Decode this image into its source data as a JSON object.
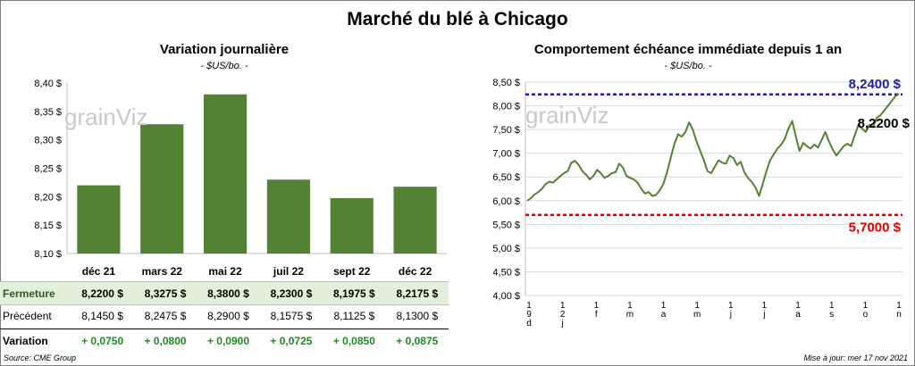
{
  "title": "Marché du blé à Chicago",
  "left": {
    "subtitle": "Variation  journalière",
    "unit": "- $US/bo. -",
    "watermark": "grainViz"
  },
  "right": {
    "subtitle": "Comportement  échéance immédiate depuis 1 an",
    "unit": "- $US/bo. -",
    "watermark": "grainViz"
  },
  "table": {
    "labels": {
      "fermeture": "Fermeture",
      "precedent": "Précédent",
      "variation": "Variation"
    },
    "fermeture": [
      "8,2200  $",
      "8,3275  $",
      "8,3800  $",
      "8,2300  $",
      "8,1975  $",
      "8,2175  $"
    ],
    "precedent": [
      "8,1450  $",
      "8,2475  $",
      "8,2900  $",
      "8,1575  $",
      "8,1125  $",
      "8,1300  $"
    ],
    "variation": [
      "+ 0,0750",
      "+ 0,0800",
      "+ 0,0900",
      "+ 0,0725",
      "+ 0,0850",
      "+ 0,0875"
    ]
  },
  "footer": {
    "source": "Source: CME Group",
    "updated": "Mise à jour: mer 17 nov 2021"
  },
  "chart_data": [
    {
      "type": "bar",
      "categories": [
        "déc 21",
        "mars 22",
        "mai 22",
        "juil 22",
        "sept 22",
        "déc 22"
      ],
      "values": [
        8.22,
        8.3275,
        8.38,
        8.23,
        8.1975,
        8.2175
      ],
      "ylim": [
        8.1,
        8.4
      ],
      "yticks": [
        "8,10 $",
        "8,15 $",
        "8,20 $",
        "8,25 $",
        "8,30 $",
        "8,35 $",
        "8,40 $"
      ],
      "color": "#548235",
      "grid": false
    },
    {
      "type": "line",
      "ylim": [
        4.0,
        8.5
      ],
      "yticks": [
        "4,00 $",
        "4,50 $",
        "5,00 $",
        "5,50 $",
        "6,00 $",
        "6,50 $",
        "7,00 $",
        "7,50 $",
        "8,00 $",
        "8,50 $"
      ],
      "xticks": [
        "1\n9\nd",
        "1\n2\nj",
        "1\nf",
        "1\nm",
        "1\na",
        "1\nm",
        "1\nj",
        "1\nj",
        "1\na",
        "1\ns",
        "1\no",
        "1\nn"
      ],
      "values": [
        6.0,
        6.05,
        6.13,
        6.18,
        6.25,
        6.35,
        6.4,
        6.38,
        6.45,
        6.52,
        6.58,
        6.62,
        6.8,
        6.84,
        6.75,
        6.62,
        6.55,
        6.45,
        6.52,
        6.65,
        6.58,
        6.48,
        6.52,
        6.58,
        6.6,
        6.78,
        6.7,
        6.52,
        6.48,
        6.45,
        6.38,
        6.25,
        6.15,
        6.18,
        6.1,
        6.12,
        6.22,
        6.35,
        6.6,
        6.9,
        7.2,
        7.4,
        7.35,
        7.45,
        7.65,
        7.5,
        7.25,
        7.05,
        6.85,
        6.62,
        6.58,
        6.72,
        6.85,
        6.8,
        6.78,
        6.95,
        6.9,
        6.75,
        6.82,
        6.6,
        6.48,
        6.4,
        6.28,
        6.1,
        6.35,
        6.62,
        6.85,
        6.98,
        7.1,
        7.18,
        7.3,
        7.52,
        7.68,
        7.35,
        7.05,
        7.22,
        7.15,
        7.1,
        7.18,
        7.12,
        7.28,
        7.45,
        7.25,
        7.08,
        6.95,
        7.05,
        7.15,
        7.2,
        7.15,
        7.38,
        7.6,
        7.52,
        7.45,
        7.6,
        7.55,
        7.75,
        7.8,
        7.9,
        8.0,
        8.1,
        8.2,
        8.25
      ],
      "line_color": "#548235",
      "high": {
        "value": 8.24,
        "label": "8,2400 $",
        "color": "#1f1fa8"
      },
      "low": {
        "value": 5.7,
        "label": "5,7000 $",
        "color": "#e00000"
      },
      "last_label": "8,2200 $",
      "grid": true
    }
  ]
}
